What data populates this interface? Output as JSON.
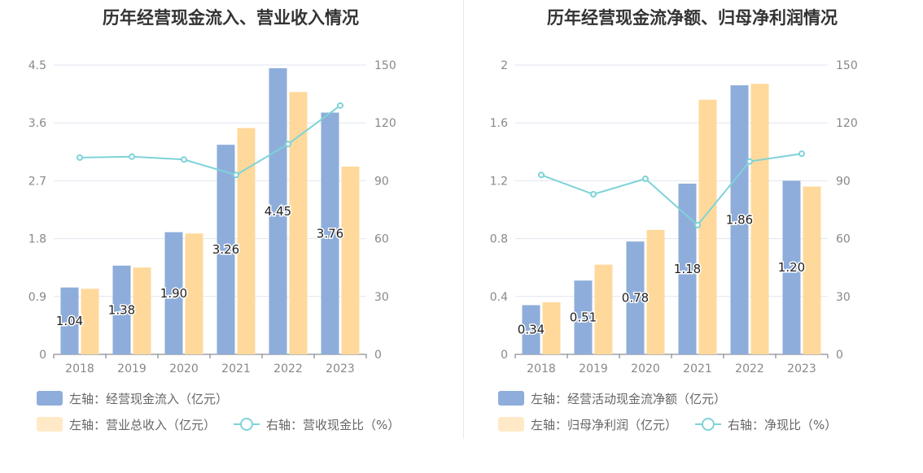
{
  "colors": {
    "bar1": "#8EADDA",
    "bar2": "#FFD99B",
    "bar2_legend": "#FFE9C7",
    "line": "#7ED3D8",
    "grid": "#E3E6F0",
    "axis_text": "#888888",
    "label_text": "#222222"
  },
  "chart_data": [
    {
      "type": "bar",
      "title": "历年经营现金流入、营业收入情况",
      "categories": [
        "2018",
        "2019",
        "2020",
        "2021",
        "2022",
        "2023"
      ],
      "left_axis": {
        "min": 0,
        "max": 4.5,
        "ticks": [
          "0",
          "0.9",
          "1.8",
          "2.7",
          "3.6",
          "4.5"
        ]
      },
      "right_axis": {
        "min": 0,
        "max": 150,
        "ticks": [
          "0",
          "30",
          "60",
          "90",
          "120",
          "150"
        ]
      },
      "series": [
        {
          "name": "左轴：经营现金流入（亿元）",
          "kind": "bar",
          "axis": "left",
          "values": [
            1.04,
            1.38,
            1.9,
            3.26,
            4.45,
            3.76
          ],
          "labels": [
            "1.04",
            "1.38",
            "1.90",
            "3.26",
            "4.45",
            "3.76"
          ]
        },
        {
          "name": "左轴：营业总收入（亿元）",
          "kind": "bar",
          "axis": "left",
          "values": [
            1.02,
            1.35,
            1.88,
            3.52,
            4.08,
            2.92
          ]
        },
        {
          "name": "右轴：营收现金比（%）",
          "kind": "line",
          "axis": "right",
          "values": [
            102,
            102.5,
            101,
            93,
            109,
            129
          ]
        }
      ],
      "legend": {
        "row1": [
          "左轴：经营现金流入（亿元）"
        ],
        "row2": [
          "左轴：营业总收入（亿元）",
          "右轴：营收现金比（%）"
        ]
      }
    },
    {
      "type": "bar",
      "title": "历年经营现金流净额、归母净利润情况",
      "categories": [
        "2018",
        "2019",
        "2020",
        "2021",
        "2022",
        "2023"
      ],
      "left_axis": {
        "min": 0,
        "max": 2,
        "ticks": [
          "0",
          "0.4",
          "0.8",
          "1.2",
          "1.6",
          "2"
        ]
      },
      "right_axis": {
        "min": 0,
        "max": 150,
        "ticks": [
          "0",
          "30",
          "60",
          "90",
          "120",
          "150"
        ]
      },
      "series": [
        {
          "name": "左轴：经营活动现金流净额（亿元）",
          "kind": "bar",
          "axis": "left",
          "values": [
            0.34,
            0.51,
            0.78,
            1.18,
            1.86,
            1.2
          ],
          "labels": [
            "0.34",
            "0.51",
            "0.78",
            "1.18",
            "1.86",
            "1.20"
          ]
        },
        {
          "name": "左轴：归母净利润（亿元）",
          "kind": "bar",
          "axis": "left",
          "values": [
            0.36,
            0.62,
            0.86,
            1.76,
            1.87,
            1.16
          ]
        },
        {
          "name": "右轴：净现比（%）",
          "kind": "line",
          "axis": "right",
          "values": [
            93,
            83,
            91,
            67,
            100,
            104
          ]
        }
      ],
      "legend": {
        "row1": [
          "左轴：经营活动现金流净额（亿元）"
        ],
        "row2": [
          "左轴：归母净利润（亿元）",
          "右轴：净现比（%）"
        ]
      }
    }
  ]
}
